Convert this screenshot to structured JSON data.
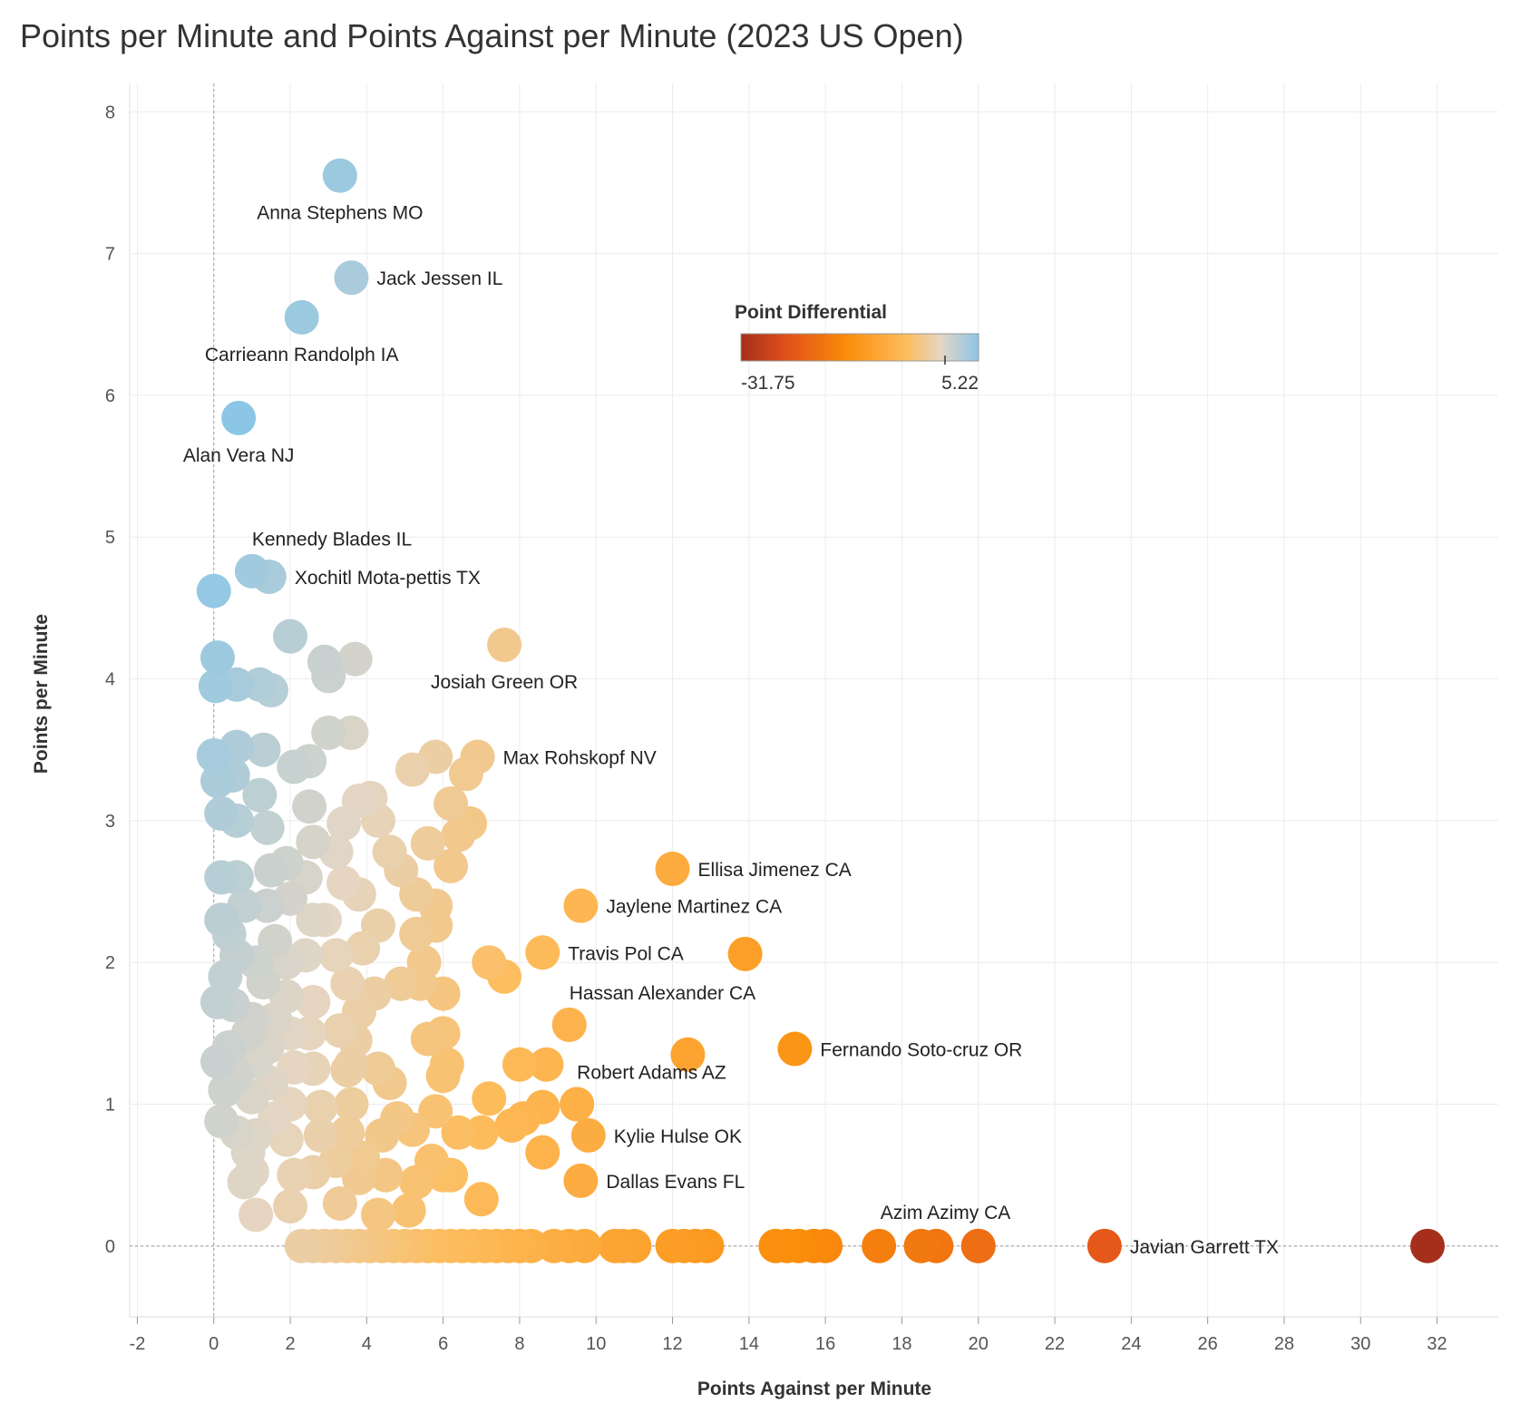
{
  "chart_data": {
    "type": "scatter",
    "title": "Points per Minute and Points Against per Minute (2023 US Open)",
    "xlabel": "Points Against per Minute",
    "ylabel": "Points per Minute",
    "xlim": [
      -2.2,
      33.6
    ],
    "ylim": [
      -0.5,
      8.2
    ],
    "x_ticks": [
      -2,
      0,
      2,
      4,
      6,
      8,
      10,
      12,
      14,
      16,
      18,
      20,
      22,
      24,
      26,
      28,
      30,
      32
    ],
    "y_ticks": [
      0,
      1,
      2,
      3,
      4,
      5,
      6,
      7,
      8
    ],
    "grid": true,
    "color_legend": {
      "title": "Point Differential",
      "min": -31.75,
      "max": 5.22,
      "min_label": "-31.75",
      "max_label": "5.22",
      "colors": [
        "#a62f1c",
        "#e2511b",
        "#fb8e0a",
        "#fdbd5e",
        "#e4d6c4",
        "#8cc6e6"
      ],
      "placement": "top-center"
    },
    "labeled_points": [
      {
        "name": "Anna Stephens MO",
        "x": 3.3,
        "y": 7.55,
        "label_pos": "below"
      },
      {
        "name": "Jack Jessen IL",
        "x": 3.6,
        "y": 6.83,
        "label_pos": "right"
      },
      {
        "name": "Carrieann Randolph IA",
        "x": 2.3,
        "y": 6.55,
        "label_pos": "below"
      },
      {
        "name": "Alan Vera NJ",
        "x": 0.65,
        "y": 5.84,
        "label_pos": "below"
      },
      {
        "name": "Kennedy Blades IL",
        "x": 1.0,
        "y": 4.76,
        "label_pos": "above-right"
      },
      {
        "name": "Xochitl Mota-pettis TX",
        "x": 1.45,
        "y": 4.72,
        "label_pos": "right"
      },
      {
        "name": "Josiah Green OR",
        "x": 7.6,
        "y": 4.24,
        "label_pos": "below"
      },
      {
        "name": "Max Rohskopf NV",
        "x": 6.9,
        "y": 3.45,
        "label_pos": "right"
      },
      {
        "name": "Ellisa Jimenez CA",
        "x": 12.0,
        "y": 2.66,
        "label_pos": "right"
      },
      {
        "name": "Jaylene Martinez CA",
        "x": 9.6,
        "y": 2.4,
        "label_pos": "right"
      },
      {
        "name": "Travis Pol CA",
        "x": 8.6,
        "y": 2.07,
        "label_pos": "right"
      },
      {
        "name": "Hassan Alexander CA",
        "x": 9.3,
        "y": 1.56,
        "label_pos": "above-right"
      },
      {
        "name": "Fernando Soto-cruz OR",
        "x": 15.2,
        "y": 1.39,
        "label_pos": "right"
      },
      {
        "name": "Robert Adams AZ",
        "x": 9.5,
        "y": 1.0,
        "label_pos": "above-right"
      },
      {
        "name": "Kylie Hulse OK",
        "x": 9.8,
        "y": 0.78,
        "label_pos": "right"
      },
      {
        "name": "Dallas Evans FL",
        "x": 9.6,
        "y": 0.46,
        "label_pos": "right"
      },
      {
        "name": "Azim Azimy CA",
        "x": 20.0,
        "y": 0.0,
        "label_pos": "above-left"
      },
      {
        "name": "Javian Garrett TX",
        "x": 23.3,
        "y": 0.0,
        "label_pos": "right"
      }
    ],
    "unlabeled_points": [
      [
        31.75,
        0
      ],
      [
        20.0,
        0
      ],
      [
        18.9,
        0
      ],
      [
        18.5,
        0
      ],
      [
        17.4,
        0
      ],
      [
        16.0,
        0
      ],
      [
        15.7,
        0
      ],
      [
        15.3,
        0
      ],
      [
        15.0,
        0
      ],
      [
        14.7,
        0
      ],
      [
        12.9,
        0
      ],
      [
        12.6,
        0
      ],
      [
        12.3,
        0
      ],
      [
        12.0,
        0
      ],
      [
        11.0,
        0
      ],
      [
        10.7,
        0
      ],
      [
        10.5,
        0
      ],
      [
        9.7,
        0
      ],
      [
        9.3,
        0
      ],
      [
        8.9,
        0
      ],
      [
        8.3,
        0
      ],
      [
        8.0,
        0
      ],
      [
        7.7,
        0
      ],
      [
        7.4,
        0
      ],
      [
        7.1,
        0
      ],
      [
        6.8,
        0
      ],
      [
        6.5,
        0
      ],
      [
        6.2,
        0
      ],
      [
        5.9,
        0
      ],
      [
        5.6,
        0
      ],
      [
        5.3,
        0
      ],
      [
        5.0,
        0
      ],
      [
        4.7,
        0
      ],
      [
        4.4,
        0
      ],
      [
        4.1,
        0
      ],
      [
        3.8,
        0
      ],
      [
        3.5,
        0
      ],
      [
        3.2,
        0
      ],
      [
        2.9,
        0
      ],
      [
        2.6,
        0
      ],
      [
        2.3,
        0
      ],
      [
        13.9,
        2.06
      ],
      [
        12.4,
        1.35
      ],
      [
        7.2,
        2.0
      ],
      [
        7.6,
        1.9
      ],
      [
        9.3,
        1.56
      ],
      [
        8.0,
        1.28
      ],
      [
        8.7,
        1.28
      ],
      [
        7.2,
        1.04
      ],
      [
        8.1,
        0.9
      ],
      [
        8.6,
        0.98
      ],
      [
        9.5,
        1.0
      ],
      [
        7.0,
        0.8
      ],
      [
        7.8,
        0.85
      ],
      [
        8.6,
        0.66
      ],
      [
        7.0,
        0.33
      ],
      [
        6.2,
        0.5
      ],
      [
        6.4,
        0.8
      ],
      [
        6.0,
        1.2
      ],
      [
        6.1,
        1.28
      ],
      [
        5.6,
        1.46
      ],
      [
        6.0,
        1.5
      ],
      [
        5.4,
        1.85
      ],
      [
        6.0,
        1.78
      ],
      [
        4.9,
        1.85
      ],
      [
        5.5,
        2.0
      ],
      [
        5.3,
        2.2
      ],
      [
        5.8,
        2.26
      ],
      [
        5.8,
        2.4
      ],
      [
        5.3,
        2.48
      ],
      [
        4.9,
        2.65
      ],
      [
        6.2,
        2.68
      ],
      [
        5.6,
        2.84
      ],
      [
        6.4,
        2.9
      ],
      [
        6.7,
        2.98
      ],
      [
        6.2,
        3.12
      ],
      [
        6.6,
        3.33
      ],
      [
        5.8,
        3.45
      ],
      [
        5.2,
        3.36
      ],
      [
        4.6,
        1.15
      ],
      [
        4.3,
        1.25
      ],
      [
        4.8,
        0.9
      ],
      [
        4.4,
        0.78
      ],
      [
        4.5,
        0.5
      ],
      [
        5.1,
        0.25
      ],
      [
        4.3,
        0.22
      ],
      [
        5.3,
        0.45
      ],
      [
        5.7,
        0.6
      ],
      [
        5.2,
        0.82
      ],
      [
        5.8,
        0.95
      ],
      [
        6.0,
        0.5
      ],
      [
        3.8,
        1.65
      ],
      [
        3.6,
        1.28
      ],
      [
        3.7,
        1.45
      ],
      [
        4.2,
        1.78
      ],
      [
        3.9,
        2.1
      ],
      [
        4.3,
        2.26
      ],
      [
        3.8,
        2.48
      ],
      [
        4.6,
        2.78
      ],
      [
        4.3,
        3.0
      ],
      [
        4.1,
        3.16
      ],
      [
        3.6,
        3.62
      ],
      [
        3.7,
        4.14
      ],
      [
        3.0,
        4.02
      ],
      [
        2.9,
        4.12
      ],
      [
        3.0,
        3.62
      ],
      [
        3.8,
        3.14
      ],
      [
        3.4,
        2.98
      ],
      [
        3.2,
        2.78
      ],
      [
        3.4,
        2.56
      ],
      [
        2.9,
        2.3
      ],
      [
        3.2,
        2.05
      ],
      [
        3.5,
        1.85
      ],
      [
        3.3,
        1.52
      ],
      [
        3.5,
        1.24
      ],
      [
        3.6,
        1.0
      ],
      [
        3.5,
        0.8
      ],
      [
        3.2,
        0.6
      ],
      [
        3.3,
        0.3
      ],
      [
        3.8,
        0.48
      ],
      [
        3.9,
        0.62
      ],
      [
        2.6,
        0.52
      ],
      [
        2.8,
        0.78
      ],
      [
        2.8,
        0.98
      ],
      [
        2.6,
        1.25
      ],
      [
        2.5,
        1.5
      ],
      [
        2.6,
        1.72
      ],
      [
        2.4,
        2.05
      ],
      [
        2.6,
        2.3
      ],
      [
        2.4,
        2.6
      ],
      [
        2.6,
        2.85
      ],
      [
        2.5,
        3.1
      ],
      [
        2.5,
        3.42
      ],
      [
        2.1,
        3.38
      ],
      [
        2.0,
        4.3
      ],
      [
        1.9,
        2.7
      ],
      [
        2.0,
        2.45
      ],
      [
        1.9,
        2.0
      ],
      [
        1.9,
        1.76
      ],
      [
        2.0,
        1.5
      ],
      [
        2.1,
        1.26
      ],
      [
        2.0,
        1.0
      ],
      [
        1.9,
        0.75
      ],
      [
        2.1,
        0.5
      ],
      [
        2.0,
        0.28
      ],
      [
        1.6,
        0.9
      ],
      [
        1.5,
        1.15
      ],
      [
        1.4,
        1.4
      ],
      [
        1.6,
        1.6
      ],
      [
        1.3,
        1.86
      ],
      [
        1.6,
        2.15
      ],
      [
        1.4,
        2.4
      ],
      [
        1.5,
        2.65
      ],
      [
        1.4,
        2.95
      ],
      [
        1.2,
        3.18
      ],
      [
        1.1,
        2.0
      ],
      [
        1.0,
        1.6
      ],
      [
        1.1,
        1.3
      ],
      [
        1.0,
        1.05
      ],
      [
        1.1,
        0.78
      ],
      [
        1.0,
        0.52
      ],
      [
        1.1,
        0.22
      ],
      [
        0.8,
        0.45
      ],
      [
        0.9,
        0.66
      ],
      [
        0.9,
        1.5
      ],
      [
        0.8,
        2.4
      ],
      [
        0.6,
        0.8
      ],
      [
        0.6,
        1.2
      ],
      [
        0.5,
        1.7
      ],
      [
        0.6,
        2.05
      ],
      [
        0.6,
        2.6
      ],
      [
        0.6,
        3.0
      ],
      [
        0.5,
        3.32
      ],
      [
        0.6,
        3.52
      ],
      [
        0.4,
        2.2
      ],
      [
        0.3,
        1.9
      ],
      [
        0.4,
        1.4
      ],
      [
        0.3,
        1.1
      ],
      [
        0.2,
        0.88
      ],
      [
        0.1,
        1.3
      ],
      [
        0.1,
        1.72
      ],
      [
        0.2,
        2.3
      ],
      [
        0.2,
        2.6
      ],
      [
        0.2,
        3.05
      ],
      [
        0.1,
        3.28
      ],
      [
        0.0,
        3.46
      ],
      [
        1.3,
        3.5
      ],
      [
        0.6,
        3.96
      ],
      [
        1.2,
        3.96
      ],
      [
        1.5,
        3.92
      ],
      [
        0.05,
        3.95
      ],
      [
        0.1,
        4.15
      ],
      [
        0.0,
        4.62
      ]
    ]
  }
}
